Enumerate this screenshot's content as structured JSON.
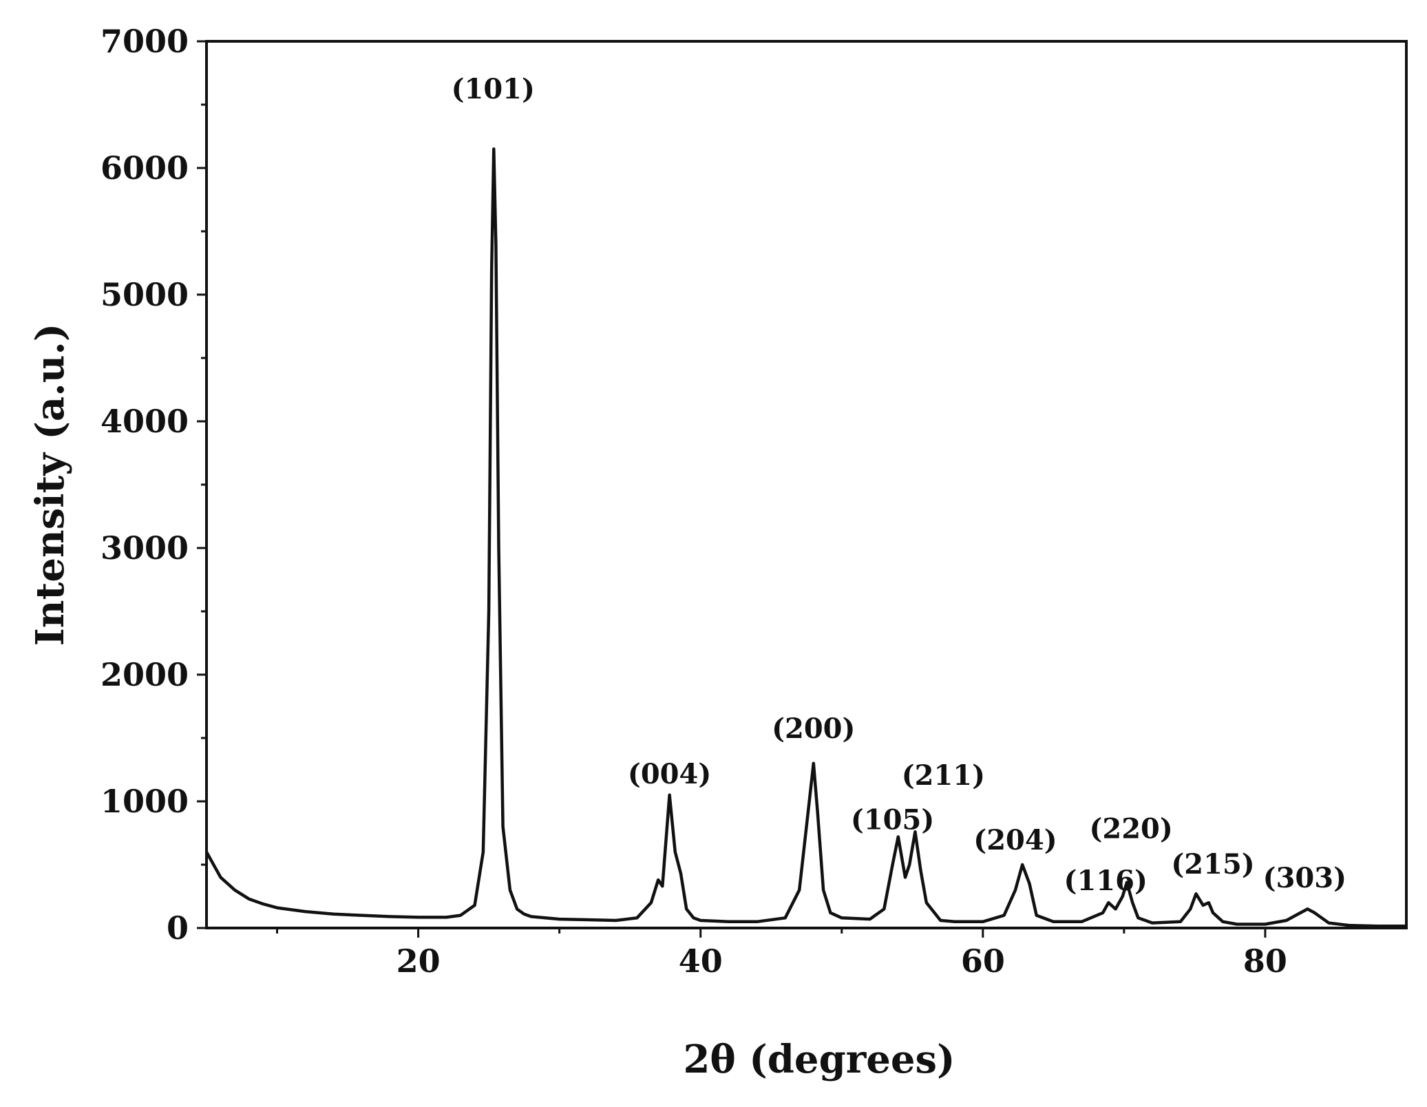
{
  "chart_data": {
    "type": "line",
    "title": "",
    "xlabel": "2θ (degrees)",
    "ylabel": "Intensity (a.u.)",
    "xlim": [
      5,
      90
    ],
    "ylim": [
      0,
      7000
    ],
    "x_ticks": [
      20,
      40,
      60,
      80
    ],
    "x_tick_labels": [
      "20",
      "40",
      "60",
      "80"
    ],
    "x_minor_ticks": [
      10,
      30,
      50,
      70
    ],
    "y_ticks": [
      0,
      1000,
      2000,
      3000,
      4000,
      5000,
      6000,
      7000
    ],
    "y_tick_labels": [
      "0",
      "1000",
      "2000",
      "3000",
      "4000",
      "5000",
      "6000",
      "7000"
    ],
    "grid": false,
    "legend": "none",
    "line_color": "#111111",
    "series": [
      {
        "x": [
          5,
          6,
          7,
          8,
          9,
          10,
          12,
          14,
          16,
          18,
          20,
          22,
          23,
          24,
          24.6,
          25,
          25.2,
          25.35,
          25.5,
          25.7,
          26,
          26.5,
          27,
          27.5,
          28,
          30,
          32,
          34,
          35.5,
          36.5,
          37,
          37.3,
          37.8,
          38.2,
          38.6,
          39,
          39.5,
          40,
          42,
          44,
          46,
          47,
          47.6,
          48,
          48.3,
          48.7,
          49.2,
          50,
          52,
          53,
          53.6,
          54,
          54.5,
          54.8,
          55.2,
          55.6,
          56,
          57,
          58,
          60,
          61.5,
          62.3,
          62.8,
          63.3,
          63.8,
          65,
          67,
          68.5,
          68.9,
          69.4,
          69.9,
          70.2,
          70.6,
          71,
          72,
          74,
          74.7,
          75.1,
          75.6,
          76,
          76.3,
          77,
          78,
          80,
          81.5,
          82.5,
          83,
          83.5,
          84.5,
          86,
          88,
          90
        ],
        "y": [
          600,
          400,
          300,
          230,
          190,
          160,
          130,
          110,
          100,
          90,
          85,
          85,
          100,
          180,
          600,
          2500,
          5200,
          6150,
          5400,
          3000,
          800,
          300,
          150,
          110,
          90,
          70,
          65,
          60,
          80,
          200,
          380,
          330,
          1050,
          600,
          430,
          150,
          80,
          60,
          50,
          50,
          80,
          300,
          900,
          1300,
          900,
          300,
          120,
          80,
          70,
          150,
          500,
          720,
          400,
          500,
          760,
          450,
          200,
          60,
          50,
          50,
          100,
          300,
          500,
          350,
          100,
          50,
          50,
          120,
          200,
          150,
          250,
          360,
          200,
          80,
          40,
          50,
          150,
          270,
          180,
          200,
          120,
          50,
          30,
          30,
          60,
          120,
          150,
          120,
          40,
          20,
          15,
          15
        ]
      }
    ],
    "annotations": [
      {
        "text": "(101)",
        "x": 25.3,
        "y": 6550
      },
      {
        "text": "(004)",
        "x": 37.8,
        "y": 1140
      },
      {
        "text": "(200)",
        "x": 48.0,
        "y": 1500
      },
      {
        "text": "(105)",
        "x": 53.6,
        "y": 780
      },
      {
        "text": "(211)",
        "x": 57.2,
        "y": 1130
      },
      {
        "text": "(204)",
        "x": 62.3,
        "y": 620
      },
      {
        "text": "(116)",
        "x": 68.7,
        "y": 300
      },
      {
        "text": "(220)",
        "x": 70.5,
        "y": 710
      },
      {
        "text": "(215)",
        "x": 76.3,
        "y": 430
      },
      {
        "text": "(303)",
        "x": 82.8,
        "y": 320
      }
    ]
  }
}
